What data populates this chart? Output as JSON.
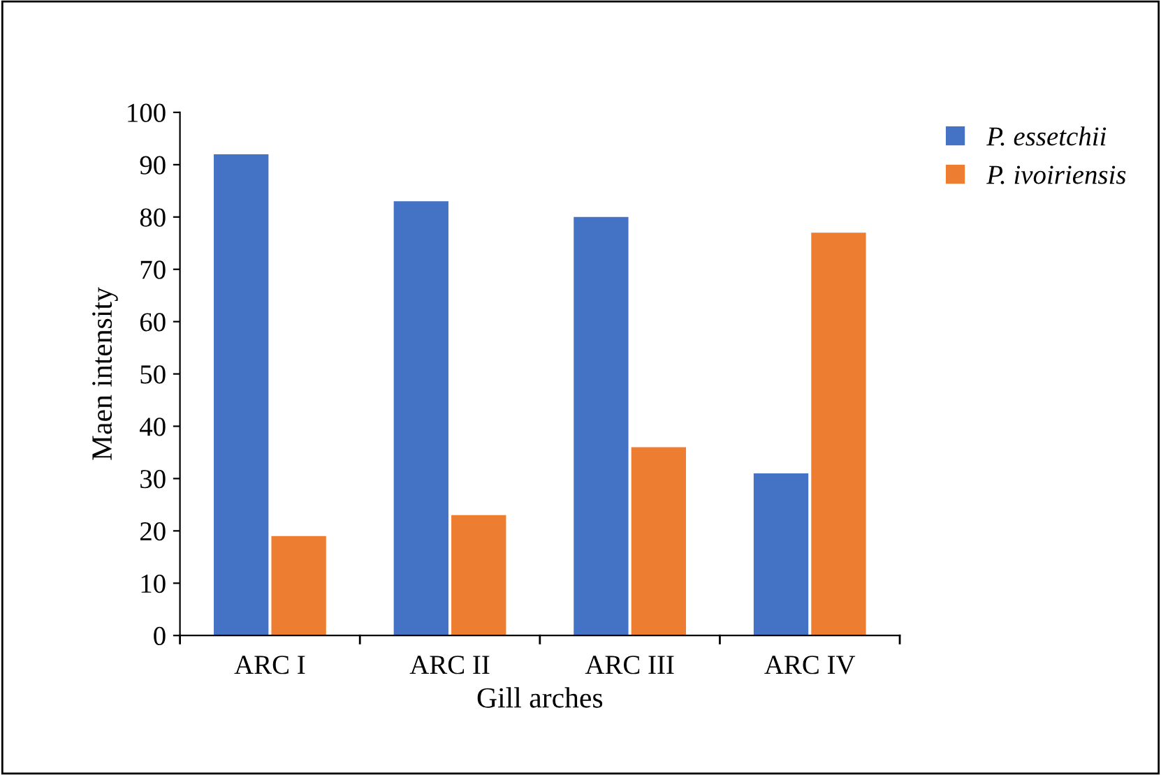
{
  "chart_data": {
    "type": "bar",
    "xlabel": "Gill arches",
    "ylabel": "Maen intensity",
    "categories": [
      "ARC I",
      "ARC II",
      "ARC III",
      "ARC IV"
    ],
    "series": [
      {
        "name": "P. essetchii",
        "color": "#4472c4",
        "values": [
          92,
          83,
          80,
          31
        ]
      },
      {
        "name": "P. ivoiriensis",
        "color": "#ed7d31",
        "values": [
          19,
          23,
          36,
          77
        ]
      }
    ],
    "ylim": [
      0,
      100
    ],
    "yticks": [
      0,
      10,
      20,
      30,
      40,
      50,
      60,
      70,
      80,
      90,
      100
    ],
    "grid": false,
    "legend": "top right"
  }
}
